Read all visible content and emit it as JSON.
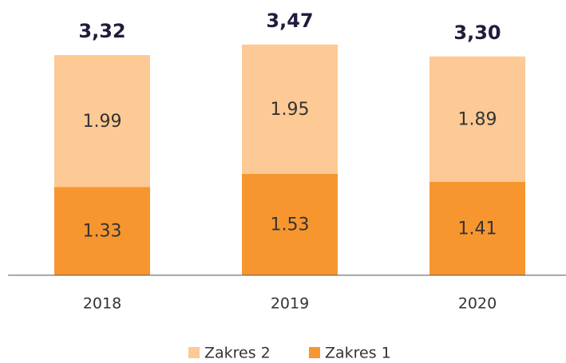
{
  "chart_data": {
    "type": "stacked_bar",
    "categories": [
      "2018",
      "2019",
      "2020"
    ],
    "series": [
      {
        "name": "Zakres 1",
        "color": "#f7962f",
        "values": [
          1.33,
          1.53,
          1.41
        ]
      },
      {
        "name": "Zakres 2",
        "color": "#fdc994",
        "values": [
          1.99,
          1.95,
          1.89
        ]
      }
    ],
    "total_labels": [
      "3,32",
      "3,47",
      "3,30"
    ]
  }
}
